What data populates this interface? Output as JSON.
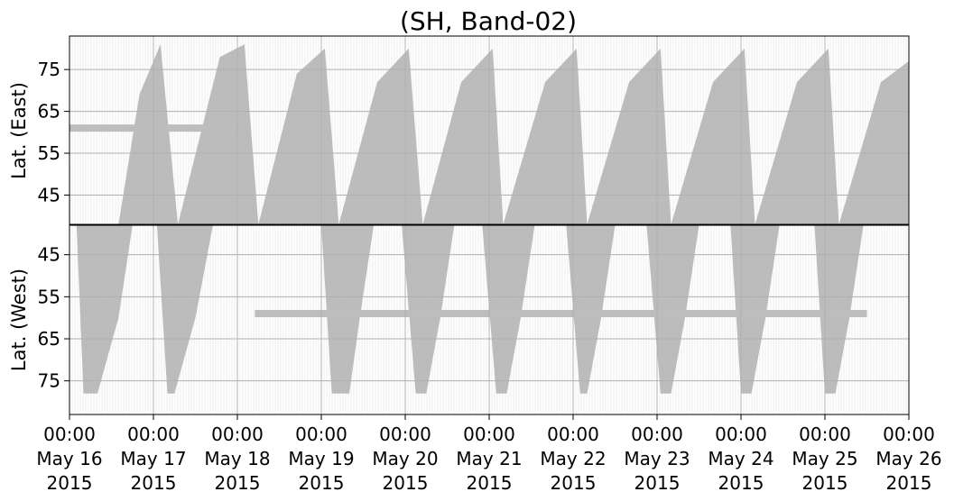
{
  "chart_data": {
    "type": "area",
    "title": "(SH, Band-02)",
    "x_ticks": [
      {
        "time": "00:00",
        "date": "May 16",
        "year": "2015"
      },
      {
        "time": "00:00",
        "date": "May 17",
        "year": "2015"
      },
      {
        "time": "00:00",
        "date": "May 18",
        "year": "2015"
      },
      {
        "time": "00:00",
        "date": "May 19",
        "year": "2015"
      },
      {
        "time": "00:00",
        "date": "May 20",
        "year": "2015"
      },
      {
        "time": "00:00",
        "date": "May 21",
        "year": "2015"
      },
      {
        "time": "00:00",
        "date": "May 22",
        "year": "2015"
      },
      {
        "time": "00:00",
        "date": "May 23",
        "year": "2015"
      },
      {
        "time": "00:00",
        "date": "May 24",
        "year": "2015"
      },
      {
        "time": "00:00",
        "date": "May 25",
        "year": "2015"
      },
      {
        "time": "00:00",
        "date": "May 26",
        "year": "2015"
      }
    ],
    "xlim": [
      "2015-05-16 00:00",
      "2015-05-26 00:00"
    ],
    "grid": true,
    "color": "#bdbdbd",
    "panels": [
      {
        "id": "east",
        "ylabel": "Lat. (East)",
        "yticks": [
          "45",
          "55",
          "65",
          "75"
        ],
        "ylim": [
          38,
          83
        ],
        "inverted": false,
        "coverage_edge": [
          [
            "2015-05-16 00:00",
            77
          ],
          [
            "2015-05-16 00:12",
            38
          ],
          [
            "2015-05-16 14:00",
            38
          ],
          [
            "2015-05-16 20:00",
            69
          ],
          [
            "2015-05-17 02:00",
            81
          ],
          [
            "2015-05-17 07:00",
            38
          ],
          [
            "2015-05-17 19:00",
            78
          ],
          [
            "2015-05-18 02:00",
            81
          ],
          [
            "2015-05-18 06:00",
            38
          ],
          [
            "2015-05-18 17:00",
            74
          ],
          [
            "2015-05-19 01:00",
            80
          ],
          [
            "2015-05-19 05:00",
            38
          ],
          [
            "2015-05-19 16:00",
            72
          ],
          [
            "2015-05-20 01:00",
            80
          ],
          [
            "2015-05-20 05:00",
            38
          ],
          [
            "2015-05-20 16:00",
            72
          ],
          [
            "2015-05-21 01:00",
            80
          ],
          [
            "2015-05-21 04:00",
            38
          ],
          [
            "2015-05-21 16:00",
            72
          ],
          [
            "2015-05-22 01:00",
            80
          ],
          [
            "2015-05-22 04:00",
            38
          ],
          [
            "2015-05-22 16:00",
            72
          ],
          [
            "2015-05-23 01:00",
            80
          ],
          [
            "2015-05-23 04:00",
            38
          ],
          [
            "2015-05-23 16:00",
            72
          ],
          [
            "2015-05-24 01:00",
            80
          ],
          [
            "2015-05-24 04:00",
            38
          ],
          [
            "2015-05-24 16:00",
            72
          ],
          [
            "2015-05-25 01:00",
            80
          ],
          [
            "2015-05-25 04:00",
            38
          ],
          [
            "2015-05-25 16:00",
            72
          ],
          [
            "2015-05-26 00:00",
            77
          ]
        ],
        "constant_band": {
          "from": "2015-05-16 00:00",
          "to": "2015-05-18 00:00",
          "lat": 61
        }
      },
      {
        "id": "west",
        "ylabel": "Lat. (West)",
        "yticks": [
          "45",
          "55",
          "65",
          "75"
        ],
        "ylim": [
          38,
          83
        ],
        "inverted": true,
        "coverage_edge": [
          [
            "2015-05-16 00:00",
            38
          ],
          [
            "2015-05-16 02:00",
            38
          ],
          [
            "2015-05-16 04:00",
            78
          ],
          [
            "2015-05-16 08:00",
            78
          ],
          [
            "2015-05-16 14:00",
            60
          ],
          [
            "2015-05-16 18:00",
            38
          ],
          [
            "2015-05-17 01:00",
            38
          ],
          [
            "2015-05-17 04:00",
            78
          ],
          [
            "2015-05-17 06:00",
            78
          ],
          [
            "2015-05-17 12:00",
            60
          ],
          [
            "2015-05-17 17:00",
            38
          ],
          [
            "2015-05-19 00:00",
            38
          ],
          [
            "2015-05-19 03:00",
            78
          ],
          [
            "2015-05-19 08:00",
            78
          ],
          [
            "2015-05-19 11:00",
            60
          ],
          [
            "2015-05-19 15:00",
            38
          ],
          [
            "2015-05-19 23:00",
            38
          ],
          [
            "2015-05-20 03:00",
            78
          ],
          [
            "2015-05-20 06:00",
            78
          ],
          [
            "2015-05-20 10:00",
            60
          ],
          [
            "2015-05-20 14:00",
            38
          ],
          [
            "2015-05-20 22:00",
            38
          ],
          [
            "2015-05-21 02:00",
            78
          ],
          [
            "2015-05-21 05:00",
            78
          ],
          [
            "2015-05-21 09:00",
            60
          ],
          [
            "2015-05-21 13:00",
            38
          ],
          [
            "2015-05-21 22:00",
            38
          ],
          [
            "2015-05-22 02:00",
            78
          ],
          [
            "2015-05-22 04:00",
            78
          ],
          [
            "2015-05-22 08:00",
            60
          ],
          [
            "2015-05-22 12:00",
            38
          ],
          [
            "2015-05-22 21:00",
            38
          ],
          [
            "2015-05-23 01:00",
            78
          ],
          [
            "2015-05-23 04:00",
            78
          ],
          [
            "2015-05-23 08:00",
            60
          ],
          [
            "2015-05-23 12:00",
            38
          ],
          [
            "2015-05-23 21:00",
            38
          ],
          [
            "2015-05-24 00:00",
            78
          ],
          [
            "2015-05-24 03:00",
            78
          ],
          [
            "2015-05-24 07:00",
            60
          ],
          [
            "2015-05-24 11:00",
            38
          ],
          [
            "2015-05-24 21:00",
            38
          ],
          [
            "2015-05-25 00:00",
            78
          ],
          [
            "2015-05-25 03:00",
            78
          ],
          [
            "2015-05-25 07:00",
            60
          ],
          [
            "2015-05-25 11:00",
            38
          ],
          [
            "2015-05-26 00:00",
            38
          ]
        ],
        "constant_band": {
          "from": "2015-05-18 05:00",
          "to": "2015-05-25 12:00",
          "lat": 59
        }
      }
    ]
  }
}
